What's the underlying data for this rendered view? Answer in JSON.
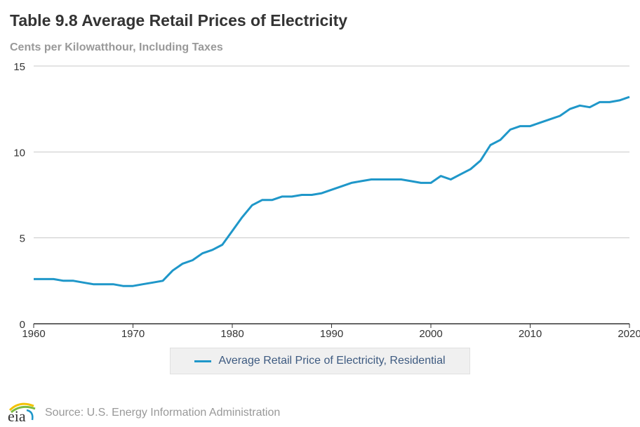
{
  "title": "Table 9.8 Average Retail Prices of Electricity",
  "subtitle": "Cents per Kilowatthour, Including Taxes",
  "source": "Source: U.S. Energy Information Administration",
  "logo_text": "eia",
  "chart_data": {
    "type": "line",
    "title": "Table 9.8 Average Retail Prices of Electricity",
    "ylabel": "Cents per Kilowatthour, Including Taxes",
    "xlim": [
      1960,
      2020
    ],
    "ylim": [
      0,
      15
    ],
    "xticks": [
      1960,
      1970,
      1980,
      1990,
      2000,
      2010,
      2020
    ],
    "yticks": [
      0,
      5,
      10,
      15
    ],
    "grid": "horizontal",
    "legend_placement": "bottom",
    "series": [
      {
        "name": "Average Retail Price of Electricity, Residential",
        "color": "#1f97c9",
        "x": [
          1960,
          1961,
          1962,
          1963,
          1964,
          1965,
          1966,
          1967,
          1968,
          1969,
          1970,
          1971,
          1972,
          1973,
          1974,
          1975,
          1976,
          1977,
          1978,
          1979,
          1980,
          1981,
          1982,
          1983,
          1984,
          1985,
          1986,
          1987,
          1988,
          1989,
          1990,
          1991,
          1992,
          1993,
          1994,
          1995,
          1996,
          1997,
          1998,
          1999,
          2000,
          2001,
          2002,
          2003,
          2004,
          2005,
          2006,
          2007,
          2008,
          2009,
          2010,
          2011,
          2012,
          2013,
          2014,
          2015,
          2016,
          2017,
          2018,
          2019,
          2020
        ],
        "values": [
          2.6,
          2.6,
          2.6,
          2.5,
          2.5,
          2.4,
          2.3,
          2.3,
          2.3,
          2.2,
          2.2,
          2.3,
          2.4,
          2.5,
          3.1,
          3.5,
          3.7,
          4.1,
          4.3,
          4.6,
          5.4,
          6.2,
          6.9,
          7.2,
          7.2,
          7.4,
          7.4,
          7.5,
          7.5,
          7.6,
          7.8,
          8.0,
          8.2,
          8.3,
          8.4,
          8.4,
          8.4,
          8.4,
          8.3,
          8.2,
          8.2,
          8.6,
          8.4,
          8.7,
          9.0,
          9.5,
          10.4,
          10.7,
          11.3,
          11.5,
          11.5,
          11.7,
          11.9,
          12.1,
          12.5,
          12.7,
          12.6,
          12.9,
          12.9,
          13.0,
          13.2
        ]
      }
    ]
  }
}
